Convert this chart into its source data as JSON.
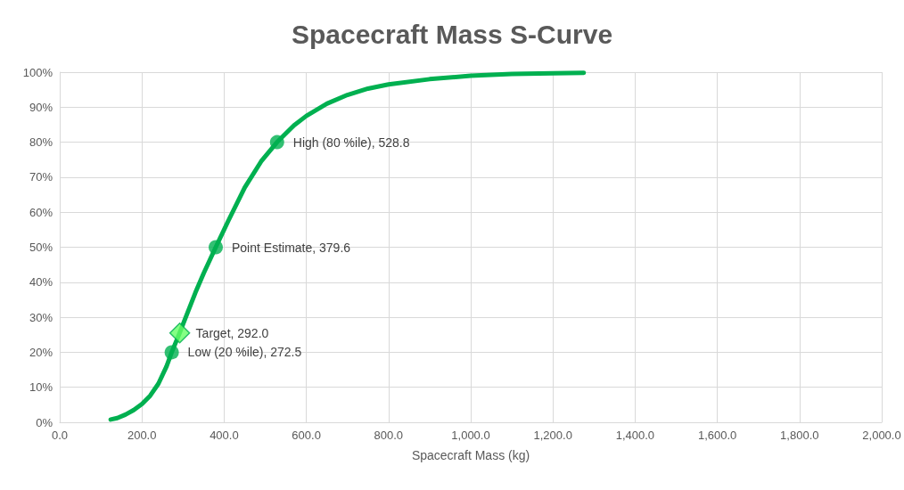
{
  "chart_data": {
    "type": "line",
    "title": "Spacecraft Mass S-Curve",
    "xlabel": "Spacecraft Mass (kg)",
    "xlim": [
      0,
      2000
    ],
    "xticks": [
      {
        "value": 0,
        "label": "0.0"
      },
      {
        "value": 200,
        "label": "200.0"
      },
      {
        "value": 400,
        "label": "400.0"
      },
      {
        "value": 600,
        "label": "600.0"
      },
      {
        "value": 800,
        "label": "800.0"
      },
      {
        "value": 1000,
        "label": "1,000.0"
      },
      {
        "value": 1200,
        "label": "1,200.0"
      },
      {
        "value": 1400,
        "label": "1,400.0"
      },
      {
        "value": 1600,
        "label": "1,600.0"
      },
      {
        "value": 1800,
        "label": "1,800.0"
      },
      {
        "value": 2000,
        "label": "2,000.0"
      }
    ],
    "ylim": [
      0,
      100
    ],
    "yticks": [
      {
        "value": 0,
        "label": "0%"
      },
      {
        "value": 10,
        "label": "10%"
      },
      {
        "value": 20,
        "label": "20%"
      },
      {
        "value": 30,
        "label": "30%"
      },
      {
        "value": 40,
        "label": "40%"
      },
      {
        "value": 50,
        "label": "50%"
      },
      {
        "value": 60,
        "label": "60%"
      },
      {
        "value": 70,
        "label": "70%"
      },
      {
        "value": 80,
        "label": "80%"
      },
      {
        "value": 90,
        "label": "90%"
      },
      {
        "value": 100,
        "label": "100%"
      }
    ],
    "grid": true,
    "series": [
      {
        "marker": "none",
        "color": "#00b050",
        "x": [
          124,
          140,
          160,
          180,
          200,
          220,
          240,
          260,
          272.5,
          290,
          310,
          330,
          350,
          379.6,
          410,
          450,
          490,
          528.8,
          570,
          600,
          650,
          700,
          750,
          800,
          900,
          1000,
          1100,
          1200,
          1275
        ],
        "values": [
          0.8,
          1.2,
          2.2,
          3.5,
          5.2,
          7.6,
          11,
          16,
          20,
          25,
          31,
          37,
          42.5,
          50,
          57.5,
          67,
          74.5,
          80,
          84.8,
          87.5,
          91,
          93.5,
          95.3,
          96.5,
          98,
          99,
          99.5,
          99.7,
          99.8
        ]
      },
      {
        "type": "scatter",
        "marker": "circle",
        "color": "#00b050",
        "x": [
          272.5,
          379.6,
          528.8
        ],
        "values": [
          20,
          50,
          80
        ]
      },
      {
        "type": "scatter",
        "marker": "diamond",
        "color": "#66ff66",
        "x": [
          292.0
        ],
        "values": [
          25.5
        ]
      }
    ],
    "annotations": [
      {
        "text": "Low (20 %ile), 272.5",
        "x": 272.5,
        "y": 20
      },
      {
        "text": "Point Estimate, 379.6",
        "x": 379.6,
        "y": 50
      },
      {
        "text": "High (80 %ile), 528.8",
        "x": 528.8,
        "y": 80
      },
      {
        "text": "Target, 292.0",
        "x": 292.0,
        "y": 25.5
      }
    ]
  }
}
